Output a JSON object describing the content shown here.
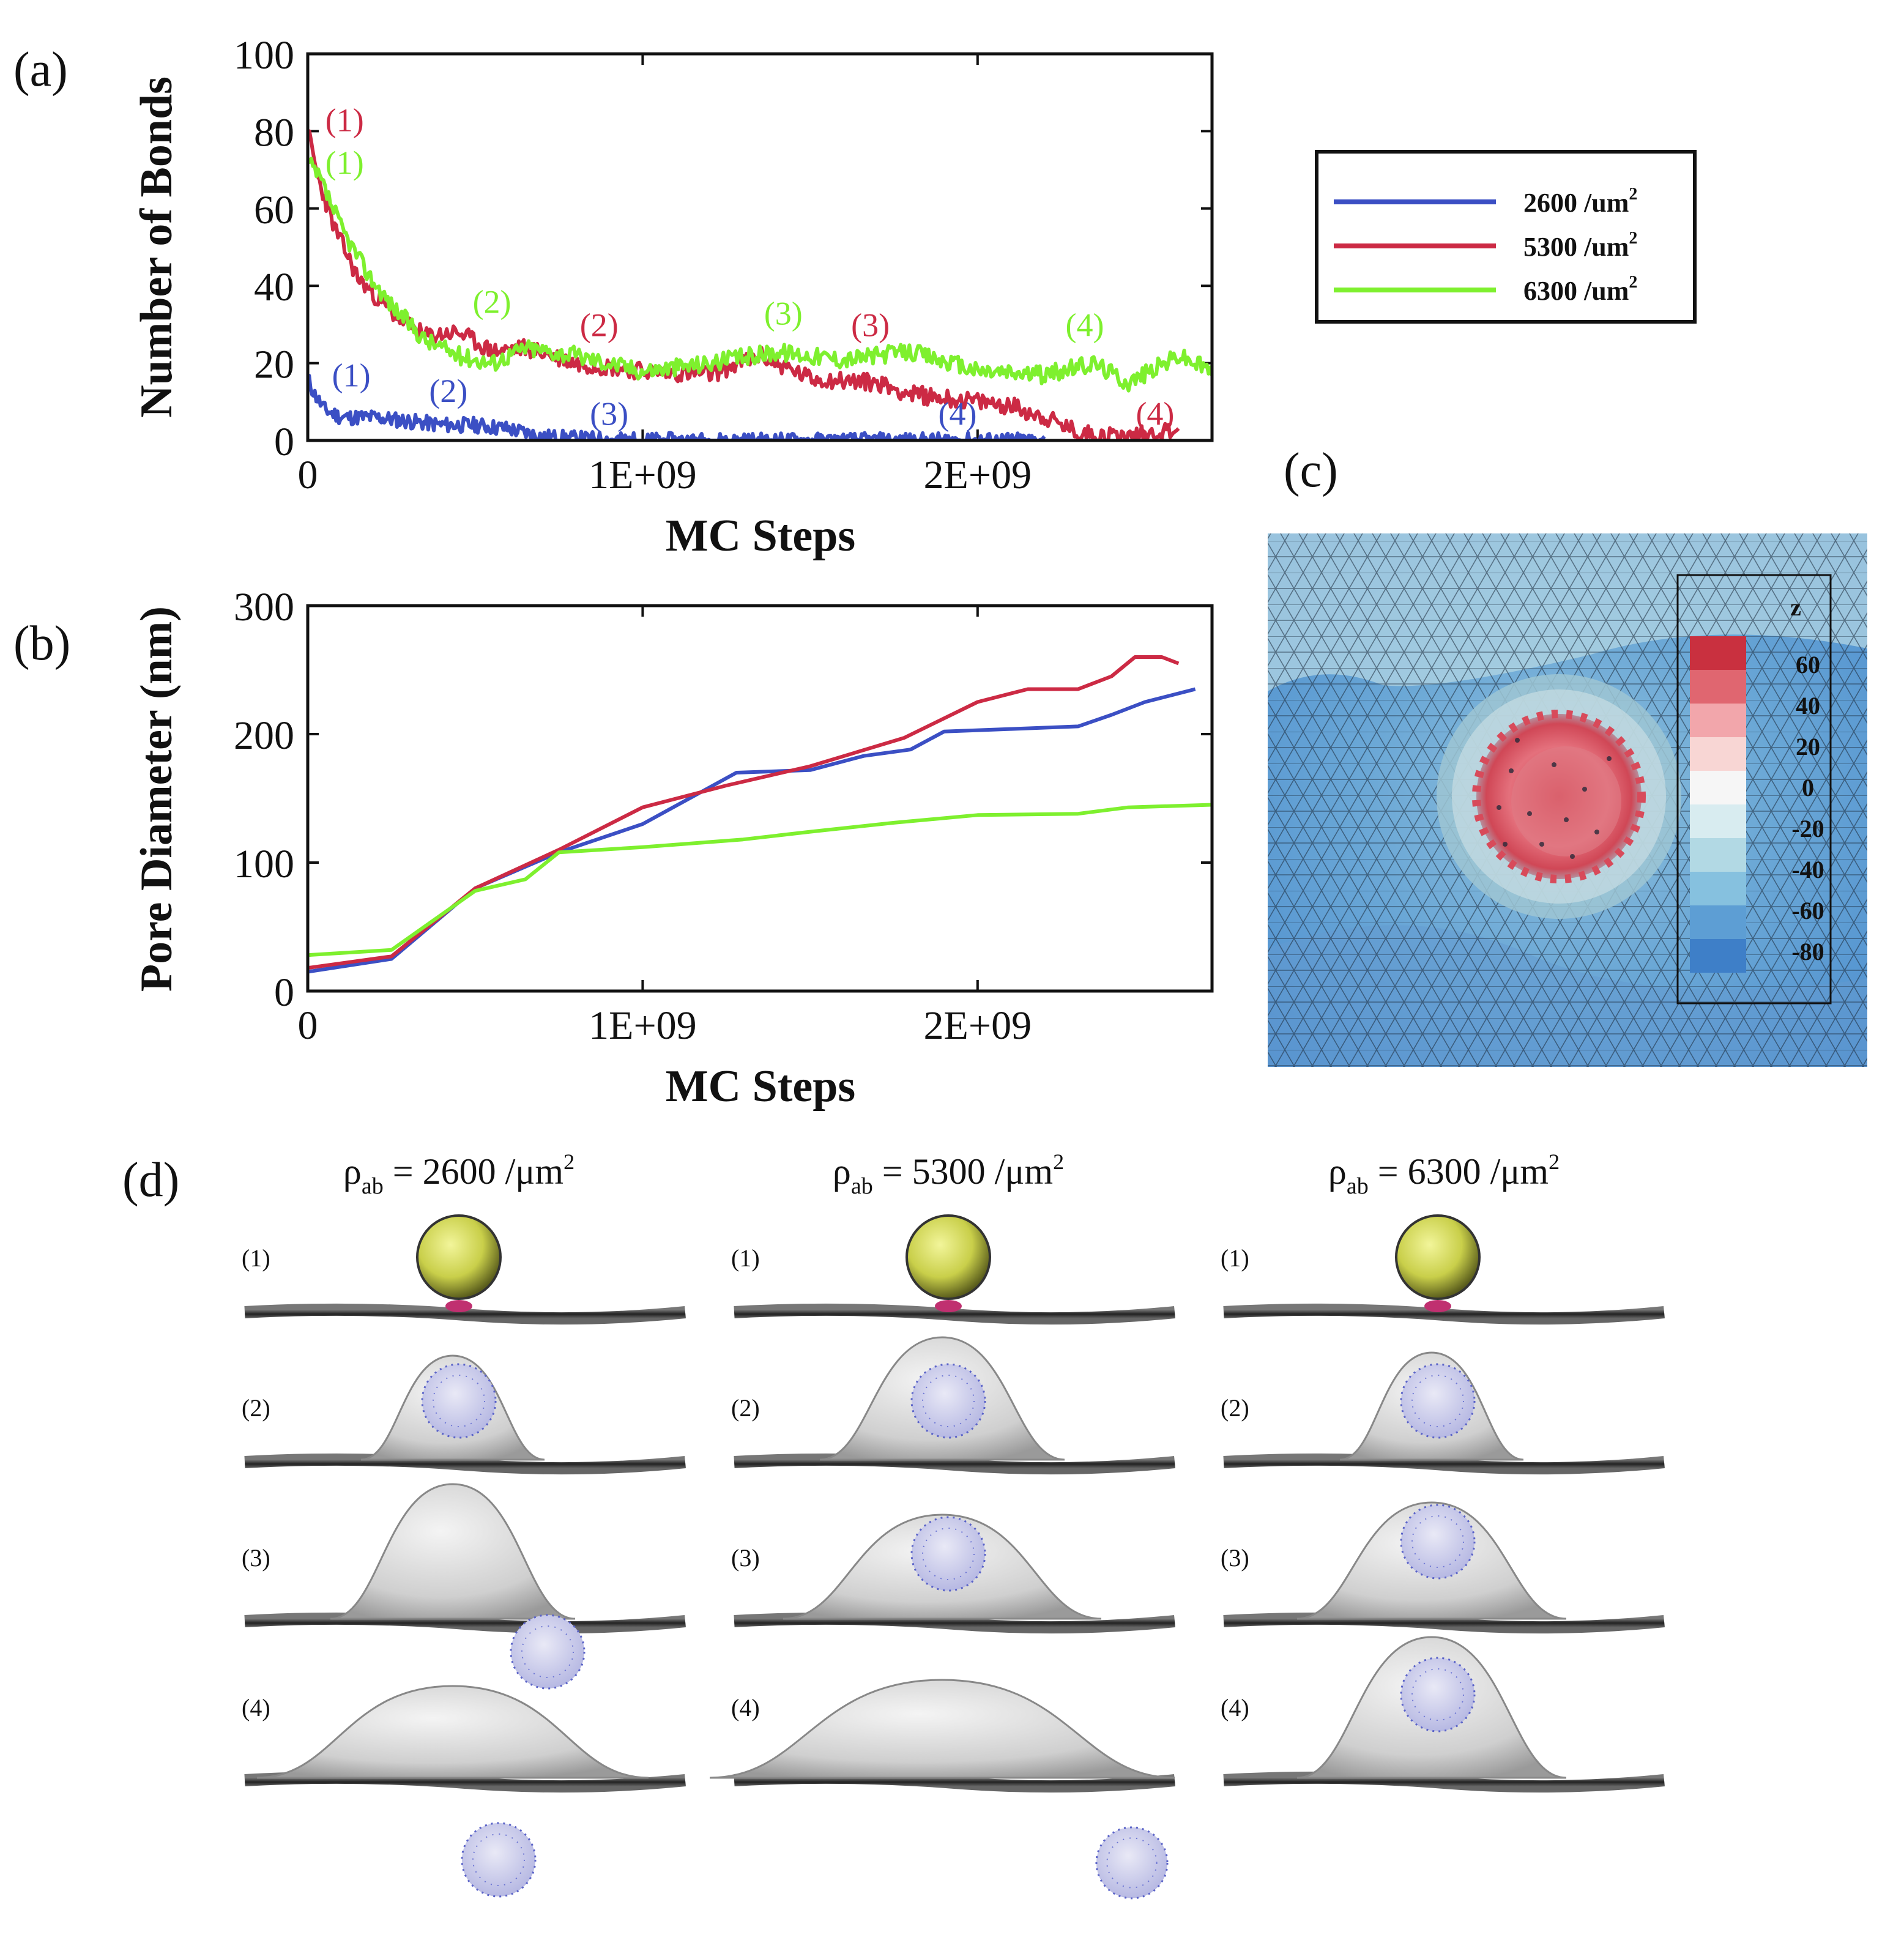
{
  "panel_labels": {
    "a": "(a)",
    "b": "(b)",
    "c": "(c)",
    "d": "(d)"
  },
  "colors": {
    "s2600": "#3b4fc4",
    "s5300": "#cc2a44",
    "s6300": "#7ef02e"
  },
  "chart_data": [
    {
      "id": "a",
      "type": "line",
      "title": "",
      "xlabel": "MC Steps",
      "ylabel": "Number of Bonds",
      "xlim": [
        0,
        2700000000
      ],
      "ylim": [
        0,
        100
      ],
      "x_ticks": [
        0,
        1000000000,
        2000000000
      ],
      "x_tick_labels": [
        "0",
        "1E+09",
        "2E+09"
      ],
      "y_ticks": [
        0,
        20,
        40,
        60,
        80,
        100
      ],
      "y_tick_labels": [
        "0",
        "20",
        "40",
        "60",
        "80",
        "100"
      ],
      "legend": {
        "position": "right",
        "entries": [
          {
            "name": "2600 /um",
            "sup": "2",
            "color": "#3b4fc4"
          },
          {
            "name": "5300 /um",
            "sup": "2",
            "color": "#cc2a44"
          },
          {
            "name": "6300 /um",
            "sup": "2",
            "color": "#7ef02e"
          }
        ]
      },
      "series": [
        {
          "name": "2600 /um2",
          "color": "#3b4fc4",
          "x": [
            0,
            20000000,
            50000000,
            100000000,
            200000000,
            300000000,
            400000000,
            500000000,
            600000000,
            700000000,
            800000000,
            1000000000,
            1500000000,
            2000000000,
            2200000000
          ],
          "y": [
            16,
            12,
            8,
            6,
            6,
            5,
            4,
            4,
            3,
            1,
            0.5,
            0,
            0,
            0,
            0
          ],
          "noise": 2,
          "seed": 11
        },
        {
          "name": "5300 /um2",
          "color": "#cc2a44",
          "x": [
            0,
            30000000,
            80000000,
            150000000,
            250000000,
            350000000,
            450000000,
            550000000,
            650000000,
            800000000,
            1000000000,
            1200000000,
            1350000000,
            1500000000,
            1700000000,
            1800000000,
            2000000000,
            2100000000,
            2200000000,
            2300000000,
            2450000000,
            2600000000
          ],
          "y": [
            80,
            68,
            55,
            42,
            33,
            27,
            28,
            23,
            24,
            20,
            18,
            17,
            22,
            16,
            15,
            12,
            10,
            9,
            6,
            2,
            1,
            3
          ],
          "noise": 2.3,
          "seed": 23
        },
        {
          "name": "6300 /um2",
          "color": "#7ef02e",
          "x": [
            0,
            40000000,
            100000000,
            180000000,
            250000000,
            350000000,
            450000000,
            550000000,
            650000000,
            800000000,
            1000000000,
            1200000000,
            1400000000,
            1600000000,
            1800000000,
            2000000000,
            2200000000,
            2350000000,
            2450000000,
            2600000000,
            2700000000
          ],
          "y": [
            72,
            67,
            55,
            43,
            35,
            26,
            22,
            20,
            24,
            22,
            18,
            20,
            23,
            21,
            23,
            18,
            17,
            20,
            15,
            22,
            18
          ],
          "noise": 2.3,
          "seed": 37
        }
      ],
      "annotations": [
        {
          "text": "(1)",
          "x": 110000000,
          "y": 80,
          "color": "#cc2a44"
        },
        {
          "text": "(1)",
          "x": 110000000,
          "y": 69,
          "color": "#7ef02e"
        },
        {
          "text": "(1)",
          "x": 130000000,
          "y": 14,
          "color": "#3b4fc4"
        },
        {
          "text": "(2)",
          "x": 550000000,
          "y": 33,
          "color": "#7ef02e"
        },
        {
          "text": "(2)",
          "x": 870000000,
          "y": 27,
          "color": "#cc2a44"
        },
        {
          "text": "(2)",
          "x": 420000000,
          "y": 10,
          "color": "#3b4fc4"
        },
        {
          "text": "(3)",
          "x": 1420000000,
          "y": 30,
          "color": "#7ef02e"
        },
        {
          "text": "(3)",
          "x": 1680000000,
          "y": 27,
          "color": "#cc2a44"
        },
        {
          "text": "(3)",
          "x": 900000000,
          "y": 4,
          "color": "#3b4fc4"
        },
        {
          "text": "(4)",
          "x": 2320000000,
          "y": 27,
          "color": "#7ef02e"
        },
        {
          "text": "(4)",
          "x": 1940000000,
          "y": 4,
          "color": "#3b4fc4"
        },
        {
          "text": "(4)",
          "x": 2530000000,
          "y": 4,
          "color": "#cc2a44"
        }
      ]
    },
    {
      "id": "b",
      "type": "line",
      "title": "",
      "xlabel": "MC Steps",
      "ylabel": "Pore Diameter (nm)",
      "xlim": [
        0,
        2700000000
      ],
      "ylim": [
        0,
        300
      ],
      "x_ticks": [
        0,
        1000000000,
        2000000000
      ],
      "x_tick_labels": [
        "0",
        "1E+09",
        "2E+09"
      ],
      "y_ticks": [
        0,
        100,
        200,
        300
      ],
      "y_tick_labels": [
        "0",
        "100",
        "200",
        "300"
      ],
      "series": [
        {
          "name": "2600 /um2",
          "color": "#3b4fc4",
          "x": [
            0,
            250000000,
            500000000,
            750000000,
            1000000000,
            1280000000,
            1500000000,
            1660000000,
            1800000000,
            1900000000,
            2100000000,
            2300000000,
            2400000000,
            2500000000,
            2650000000
          ],
          "y": [
            15,
            25,
            80,
            108,
            130,
            170,
            172,
            183,
            188,
            202,
            204,
            206,
            215,
            225,
            235
          ]
        },
        {
          "name": "5300 /um2",
          "color": "#cc2a44",
          "x": [
            0,
            250000000,
            500000000,
            750000000,
            1000000000,
            1250000000,
            1500000000,
            1780000000,
            2000000000,
            2150000000,
            2300000000,
            2400000000,
            2470000000,
            2550000000,
            2600000000
          ],
          "y": [
            18,
            27,
            80,
            110,
            143,
            160,
            175,
            197,
            225,
            235,
            235,
            245,
            260,
            260,
            255
          ]
        },
        {
          "name": "6300 /um2",
          "color": "#7ef02e",
          "x": [
            0,
            250000000,
            500000000,
            650000000,
            750000000,
            1000000000,
            1300000000,
            1500000000,
            1750000000,
            2000000000,
            2300000000,
            2450000000,
            2700000000
          ],
          "y": [
            28,
            32,
            78,
            87,
            108,
            112,
            118,
            124,
            131,
            137,
            138,
            143,
            145
          ]
        }
      ]
    }
  ],
  "colorbar": {
    "title": "z",
    "tick_labels": [
      "60",
      "40",
      "20",
      "0",
      "-20",
      "-40",
      "-60",
      "-80"
    ]
  },
  "panel_d": {
    "columns": [
      {
        "prefix": "ρ",
        "sub": "ab",
        "value": "= 2600 /μm",
        "sup": "2"
      },
      {
        "prefix": "ρ",
        "sub": "ab",
        "value": "= 5300 /μm",
        "sup": "2"
      },
      {
        "prefix": "ρ",
        "sub": "ab",
        "value": "= 6300 /μm",
        "sup": "2"
      }
    ],
    "stage_labels": [
      "(1)",
      "(2)",
      "(3)",
      "(4)"
    ]
  }
}
